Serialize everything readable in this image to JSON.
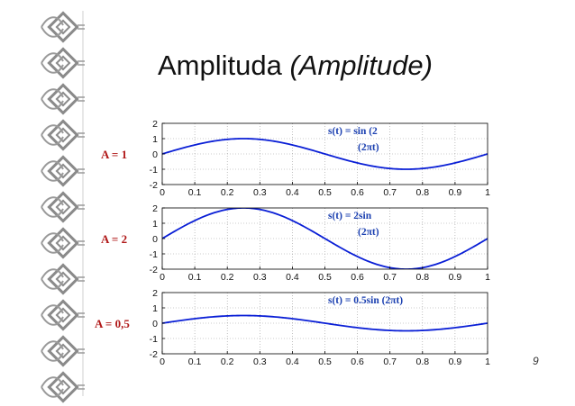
{
  "slide": {
    "title_main": "Amplituda",
    "title_paren": "(Amplitude)",
    "page_number": "9"
  },
  "colors": {
    "curve": "#0a1fd6",
    "formula": "#1a3fb0",
    "amp_label": "#b01818",
    "axis": "#000000",
    "grid": "#9a9a9a"
  },
  "chart_data": [
    {
      "type": "line",
      "amp_label": "A = 1",
      "formula_line1": "s(t) = sin (2",
      "formula_line2": "(2πt)",
      "x_ticks": [
        "0",
        "0.1",
        "0.2",
        "0.3",
        "0.4",
        "0.5",
        "0.6",
        "0.7",
        "0.8",
        "0.9",
        "1"
      ],
      "y_ticks": [
        "2",
        "1",
        "0",
        "-1",
        "-2"
      ],
      "xlim": [
        0,
        1
      ],
      "ylim": [
        -2,
        2
      ],
      "grid": true,
      "series": [
        {
          "amplitude": 1,
          "function": "A*sin(2*pi*t)"
        }
      ]
    },
    {
      "type": "line",
      "amp_label": "A = 2",
      "formula_line1": "s(t) = 2sin",
      "formula_line2": "(2πt)",
      "x_ticks": [
        "0",
        "0.1",
        "0.2",
        "0.3",
        "0.4",
        "0.5",
        "0.6",
        "0.7",
        "0.8",
        "0.9",
        "1"
      ],
      "y_ticks": [
        "2",
        "1",
        "0",
        "-1",
        "-2"
      ],
      "xlim": [
        0,
        1
      ],
      "ylim": [
        -2,
        2
      ],
      "grid": true,
      "series": [
        {
          "amplitude": 2,
          "function": "A*sin(2*pi*t)"
        }
      ]
    },
    {
      "type": "line",
      "amp_label": "A = 0,5",
      "formula_line1": "s(t) = 0.5sin (2πt)",
      "formula_line2": "",
      "x_ticks": [
        "0",
        "0.1",
        "0.2",
        "0.3",
        "0.4",
        "0.5",
        "0.6",
        "0.7",
        "0.8",
        "0.9",
        "1"
      ],
      "y_ticks": [
        "2",
        "1",
        "0",
        "-1",
        "-2"
      ],
      "xlim": [
        0,
        1
      ],
      "ylim": [
        -2,
        2
      ],
      "grid": true,
      "series": [
        {
          "amplitude": 0.5,
          "function": "A*sin(2*pi*t)"
        }
      ]
    }
  ]
}
